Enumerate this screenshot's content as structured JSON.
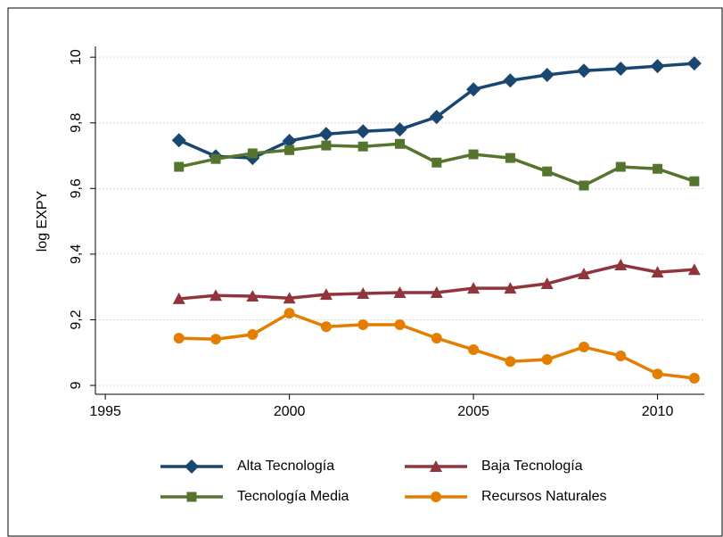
{
  "chart_data": {
    "type": "line",
    "y_label": "log EXPY",
    "x": [
      1997,
      1998,
      1999,
      2000,
      2001,
      2002,
      2003,
      2004,
      2005,
      2006,
      2007,
      2008,
      2009,
      2010,
      2011
    ],
    "series": [
      {
        "name": "Alta Tecnología",
        "color": "#1a476f",
        "marker": "diamond",
        "values": [
          9.747,
          9.698,
          9.693,
          9.745,
          9.766,
          9.774,
          9.78,
          9.818,
          9.902,
          9.929,
          9.946,
          9.959,
          9.965,
          9.973,
          9.981
        ]
      },
      {
        "name": "Baja Tecnología",
        "color": "#90353b",
        "marker": "triangle",
        "values": [
          9.264,
          9.274,
          9.272,
          9.266,
          9.277,
          9.28,
          9.283,
          9.283,
          9.296,
          9.296,
          9.31,
          9.34,
          9.367,
          9.345,
          9.353
        ]
      },
      {
        "name": "Tecnología Media",
        "color": "#55752f",
        "marker": "square",
        "values": [
          9.666,
          9.69,
          9.707,
          9.717,
          9.731,
          9.728,
          9.736,
          9.679,
          9.704,
          9.693,
          9.652,
          9.609,
          9.666,
          9.66,
          9.622
        ]
      },
      {
        "name": "Recursos Naturales",
        "color": "#e37e00",
        "marker": "circle",
        "values": [
          9.144,
          9.141,
          9.155,
          9.22,
          9.179,
          9.185,
          9.185,
          9.144,
          9.109,
          9.073,
          9.079,
          9.117,
          9.09,
          9.035,
          9.022
        ]
      }
    ],
    "xlim": [
      1994.73,
      2011.27
    ],
    "xticks": [
      1995,
      2000,
      2005,
      2010
    ],
    "ylim": [
      8.973,
      10.033
    ],
    "yticks": [
      9,
      {
        "value": 9.2,
        "label": "9,2"
      },
      {
        "value": 9.4,
        "label": "9,4"
      },
      {
        "value": 9.6,
        "label": "9,6"
      },
      {
        "value": 9.8,
        "label": "9,8"
      },
      10
    ],
    "grid": true,
    "legend": "bottom"
  }
}
